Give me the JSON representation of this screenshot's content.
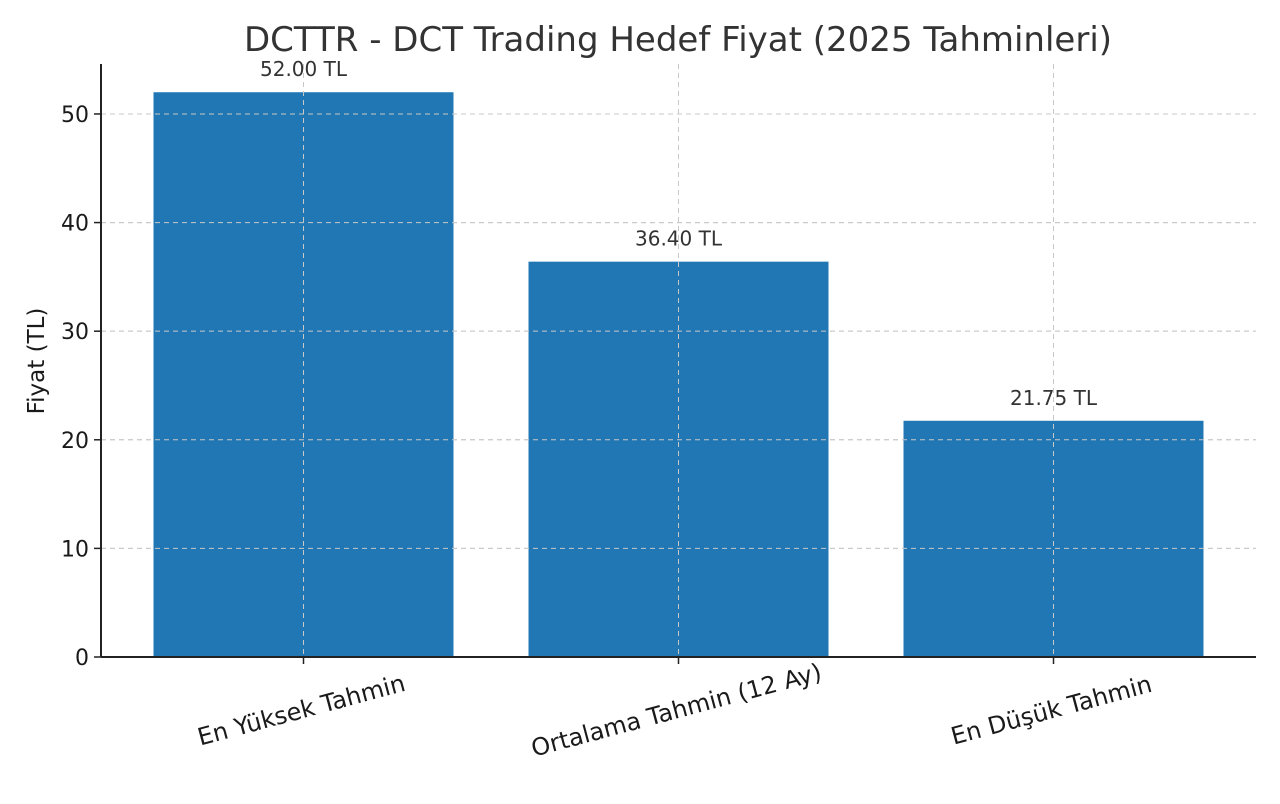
{
  "chart_data": {
    "type": "bar",
    "title": "DCTTR - DCT Trading Hedef Fiyat (2025 Tahminleri)",
    "xlabel": "",
    "ylabel": "Fiyat (TL)",
    "categories": [
      "En Yüksek Tahmin",
      "Ortalama Tahmin (12 Ay)",
      "En Düşük Tahmin"
    ],
    "values": [
      52.0,
      36.4,
      21.75
    ],
    "data_labels": [
      "52.00 TL",
      "36.40 TL",
      "21.75 TL"
    ],
    "ylim": [
      0,
      54.6
    ],
    "yticks": [
      0,
      10,
      20,
      30,
      40,
      50
    ],
    "grid": true,
    "category_label_rotation_deg": -15,
    "colors": {
      "bar": "#2077b4",
      "grid": "#c8c8c8",
      "axis": "#222222",
      "text": "#1a1a1a"
    }
  }
}
